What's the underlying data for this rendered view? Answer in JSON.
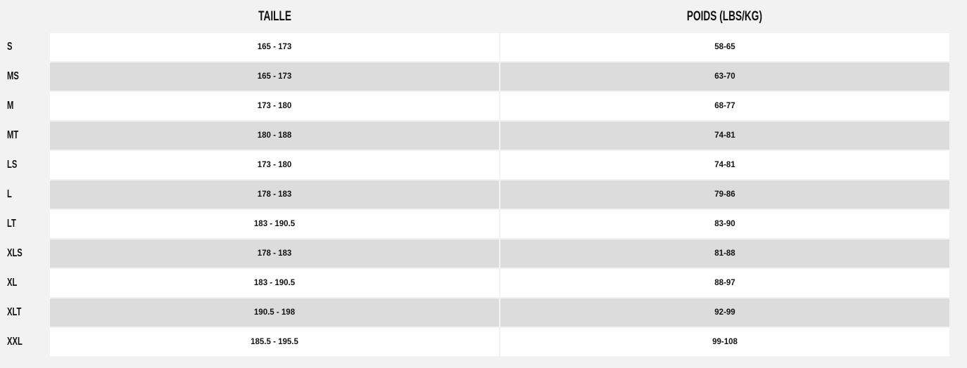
{
  "headers": {
    "size": "TAILLE",
    "weight": "POIDS (LBS/KG)"
  },
  "rows": [
    {
      "label": "S",
      "taille": "165 - 173",
      "poids": "58-65"
    },
    {
      "label": "MS",
      "taille": "165 - 173",
      "poids": "63-70"
    },
    {
      "label": "M",
      "taille": "173 - 180",
      "poids": "68-77"
    },
    {
      "label": "MT",
      "taille": "180 - 188",
      "poids": "74-81"
    },
    {
      "label": "LS",
      "taille": "173 - 180",
      "poids": "74-81"
    },
    {
      "label": "L",
      "taille": "178 - 183",
      "poids": "79-86"
    },
    {
      "label": "LT",
      "taille": "183 - 190.5",
      "poids": "83-90"
    },
    {
      "label": "XLS",
      "taille": "178 - 183",
      "poids": "81-88"
    },
    {
      "label": "XL",
      "taille": "183 - 190.5",
      "poids": "88-97"
    },
    {
      "label": "XLT",
      "taille": "190.5 - 198",
      "poids": "92-99"
    },
    {
      "label": "XXL",
      "taille": "185.5 - 195.5",
      "poids": "99-108"
    }
  ]
}
